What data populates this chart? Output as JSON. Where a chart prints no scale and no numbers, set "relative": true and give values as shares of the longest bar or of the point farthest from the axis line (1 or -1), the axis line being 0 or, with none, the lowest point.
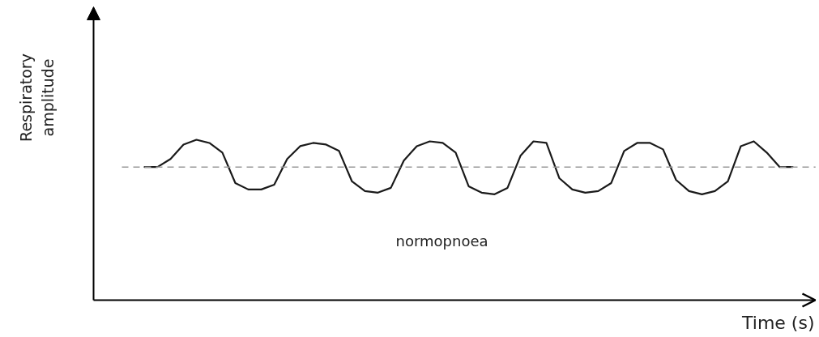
{
  "chart_data": {
    "type": "line",
    "relative": true,
    "xlabel": "Time (s)",
    "ylabel": "Respiratory amplitude",
    "annotations": [
      "normopnoea"
    ],
    "categories": [
      null,
      null,
      null,
      null,
      null,
      null,
      null,
      null,
      null,
      null,
      null,
      null,
      null,
      null,
      null,
      null,
      null,
      null,
      null,
      null,
      null,
      null,
      null,
      null,
      null,
      null,
      null,
      null,
      null,
      null,
      null,
      null,
      null,
      null,
      null,
      null,
      null,
      null,
      null,
      null,
      null,
      null,
      null,
      null,
      null,
      null,
      null,
      null,
      null,
      null,
      null
    ],
    "values": [
      0.83,
      0.83,
      0.88,
      0.97,
      1.0,
      0.98,
      0.92,
      0.73,
      0.69,
      0.69,
      0.72,
      0.88,
      0.96,
      0.98,
      0.97,
      0.93,
      0.74,
      0.68,
      0.67,
      0.7,
      0.87,
      0.96,
      0.99,
      0.98,
      0.92,
      0.71,
      0.67,
      0.66,
      0.7,
      0.9,
      0.99,
      0.98,
      0.76,
      0.69,
      0.67,
      0.68,
      0.73,
      0.93,
      0.98,
      0.98,
      0.94,
      0.75,
      0.68,
      0.66,
      0.68,
      0.74,
      0.96,
      0.99,
      0.92,
      0.83,
      0.83
    ],
    "color": "#1a1a1a",
    "ref_lines": [
      {
        "axis": "y",
        "value": 0.83,
        "label": null,
        "color": "#999999",
        "line_style": "dashed"
      }
    ]
  }
}
